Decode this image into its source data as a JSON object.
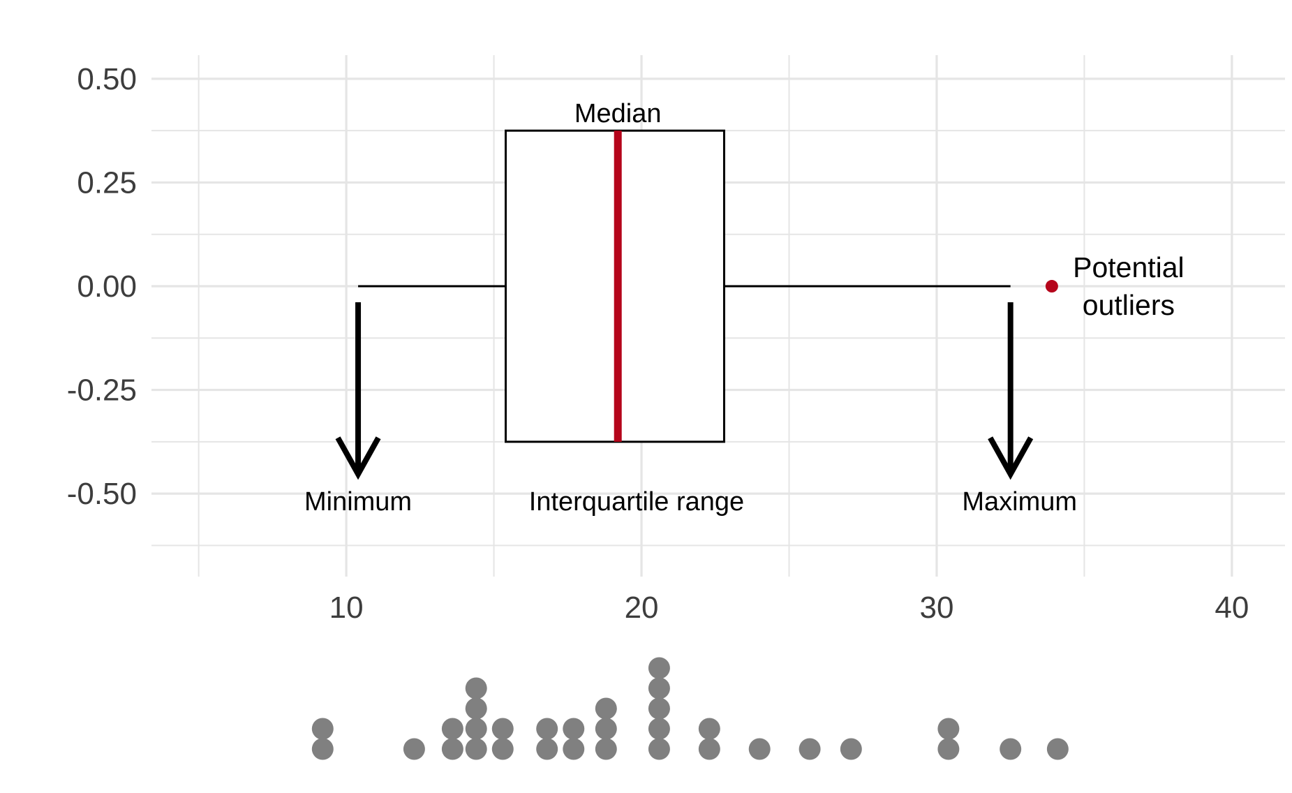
{
  "chart_data": {
    "type": "boxplot",
    "title": "",
    "xlabel": "",
    "ylabel": "",
    "xlim": [
      3.4,
      41.8
    ],
    "ylim": [
      -0.7,
      0.557
    ],
    "x_ticks": [
      "10",
      "20",
      "30",
      "40"
    ],
    "y_ticks": [
      "0.50",
      "0.25",
      "0.00",
      "-0.25",
      "-0.50"
    ],
    "grid": true,
    "box": {
      "min": 10.4,
      "q1": 15.4,
      "median": 19.2,
      "q3": 22.8,
      "max": 32.5,
      "outliers": [
        33.9
      ],
      "y_center": 0,
      "half_height": 0.375
    },
    "annotations": {
      "median": "Median",
      "minimum": "Minimum",
      "iqr": "Interquartile range",
      "maximum": "Maximum",
      "outliers_line1": "Potential",
      "outliers_line2": "outliers"
    },
    "dot_plot": {
      "values": [
        10.4,
        10.4,
        13.3,
        14.6,
        14.6,
        15.4,
        15.4,
        15.5,
        15.5,
        16.9,
        17.6,
        17.6,
        18.5,
        18.5,
        19.2,
        19.4,
        19.8,
        21,
        21,
        21,
        21.4,
        21.5,
        22.8,
        22.8,
        24.2,
        25.8,
        27.1,
        30.4,
        30.4,
        32.5,
        33.9
      ],
      "bins": [
        {
          "x": 9.2,
          "count": 2
        },
        {
          "x": 12.3,
          "count": 1
        },
        {
          "x": 13.6,
          "count": 2
        },
        {
          "x": 14.4,
          "count": 4
        },
        {
          "x": 15.3,
          "count": 2
        },
        {
          "x": 16.8,
          "count": 2
        },
        {
          "x": 17.7,
          "count": 2
        },
        {
          "x": 18.8,
          "count": 3
        },
        {
          "x": 20.6,
          "count": 5
        },
        {
          "x": 22.3,
          "count": 2
        },
        {
          "x": 24.0,
          "count": 1
        },
        {
          "x": 25.7,
          "count": 1
        },
        {
          "x": 27.1,
          "count": 1
        },
        {
          "x": 30.4,
          "count": 2
        },
        {
          "x": 32.5,
          "count": 1
        },
        {
          "x": 34.1,
          "count": 1
        }
      ]
    },
    "colors": {
      "median_line": "#b5051b",
      "outlier": "#b5051b",
      "outlier_text": "#b5051b",
      "dots": "#808080",
      "grid": "#e5e5e5",
      "axis_text": "#3d3d3d",
      "box_stroke": "#000000",
      "arrow": "#000000"
    }
  }
}
